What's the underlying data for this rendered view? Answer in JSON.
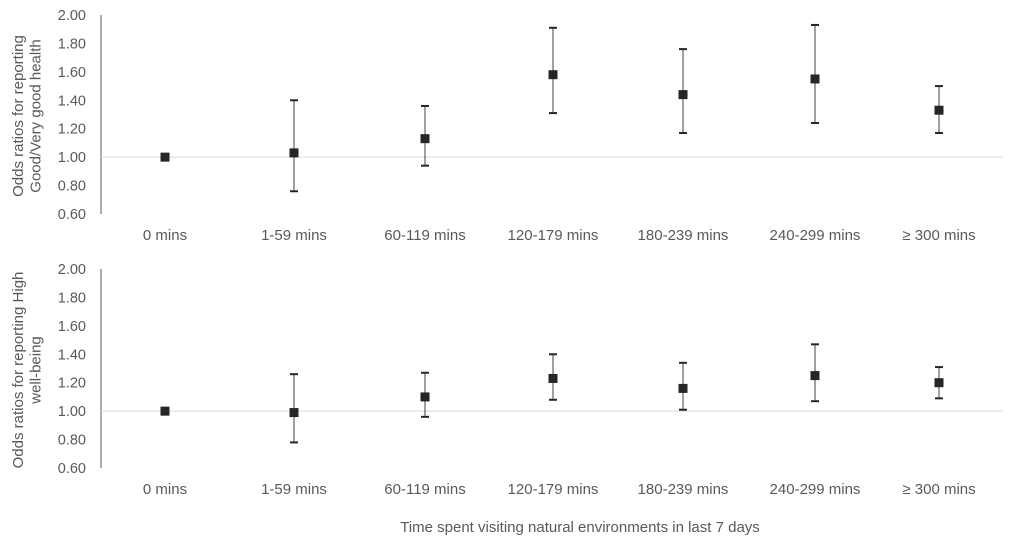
{
  "chart_data": [
    {
      "type": "scatter",
      "title": "",
      "xlabel": "",
      "ylabel": "Odds ratios for reporting Good/Very good health",
      "ylabel_lines": [
        "Odds ratios for reporting",
        "Good/Very good health"
      ],
      "ylim": [
        0.6,
        2.0
      ],
      "yticks": [
        "0.60",
        "0.80",
        "1.00",
        "1.20",
        "1.40",
        "1.60",
        "1.80",
        "2.00"
      ],
      "reference_line": 1.0,
      "categories": [
        "0 mins",
        "1-59 mins",
        "60-119 mins",
        "120-179 mins",
        "180-239 mins",
        "240-299 mins",
        "≥ 300 mins"
      ],
      "values": [
        1.0,
        1.03,
        1.13,
        1.58,
        1.44,
        1.55,
        1.33
      ],
      "lower": [
        null,
        0.76,
        0.94,
        1.31,
        1.17,
        1.24,
        1.17
      ],
      "upper": [
        null,
        1.4,
        1.36,
        1.91,
        1.76,
        1.93,
        1.5
      ],
      "marker_color": "#262626",
      "errorbar_color": "#404040",
      "grid": false
    },
    {
      "type": "scatter",
      "title": "",
      "xlabel": "Time spent visiting natural environments in last 7 days",
      "ylabel": "Odds ratios for reporting High well-being",
      "ylabel_lines": [
        "Odds ratios for reporting High",
        "well-being"
      ],
      "ylim": [
        0.6,
        2.0
      ],
      "yticks": [
        "0.60",
        "0.80",
        "1.00",
        "1.20",
        "1.40",
        "1.60",
        "1.80",
        "2.00"
      ],
      "reference_line": 1.0,
      "categories": [
        "0 mins",
        "1-59 mins",
        "60-119 mins",
        "120-179 mins",
        "180-239 mins",
        "240-299 mins",
        "≥ 300 mins"
      ],
      "values": [
        1.0,
        0.99,
        1.1,
        1.23,
        1.16,
        1.25,
        1.2
      ],
      "lower": [
        null,
        0.78,
        0.96,
        1.08,
        1.01,
        1.07,
        1.09
      ],
      "upper": [
        null,
        1.26,
        1.27,
        1.4,
        1.34,
        1.47,
        1.31
      ],
      "marker_color": "#262626",
      "errorbar_color": "#404040",
      "grid": false
    }
  ]
}
